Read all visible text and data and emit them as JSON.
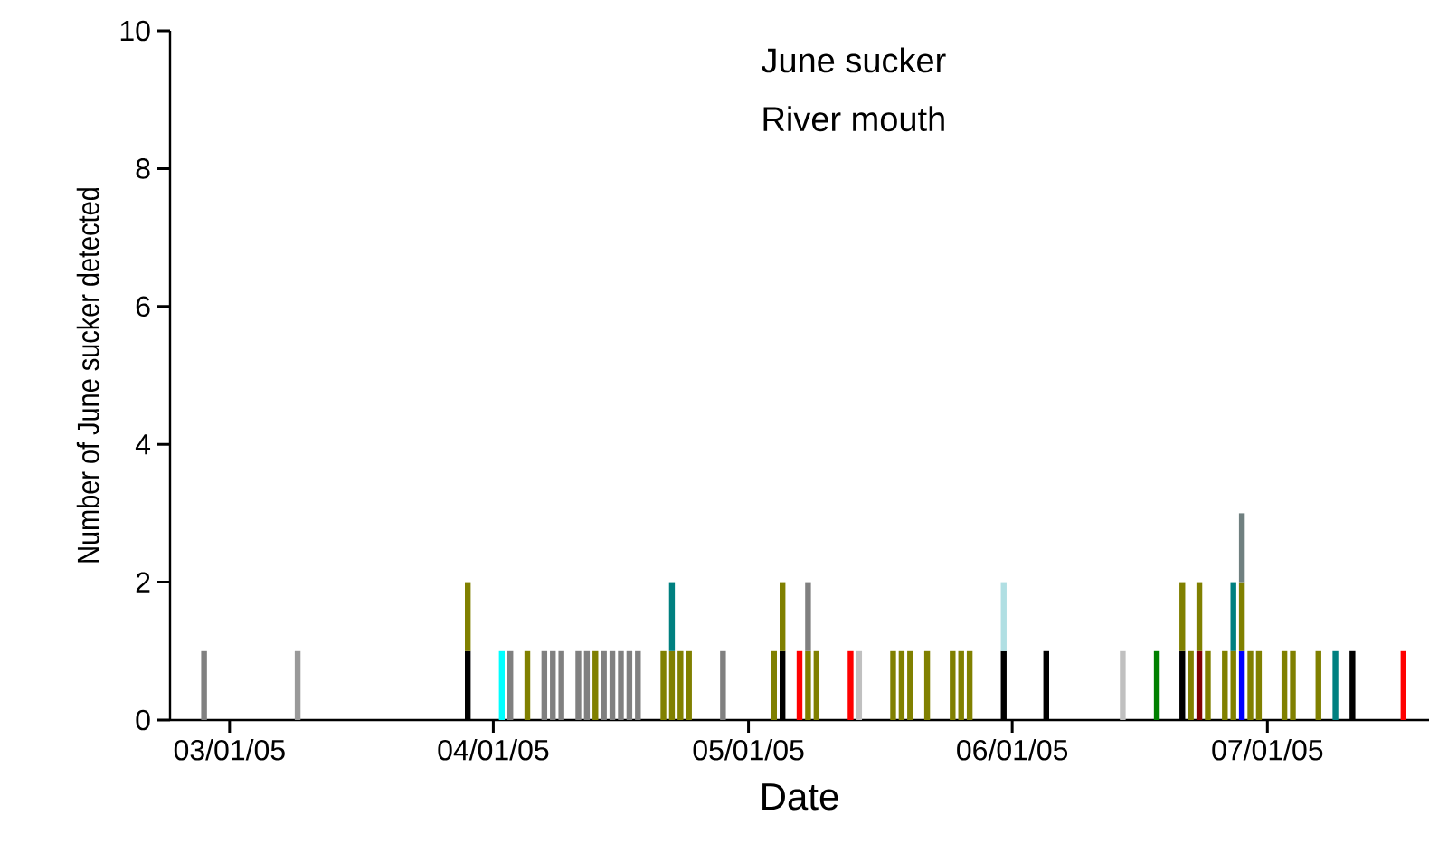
{
  "chart_data": {
    "type": "bar",
    "title": "June sucker",
    "subtitle": "River mouth",
    "xlabel": "Date",
    "ylabel": "Number of June sucker detected",
    "stacked": true,
    "x": [
      "2005-02-26",
      "2005-03-09",
      "2005-03-29",
      "2005-04-02",
      "2005-04-03",
      "2005-04-05",
      "2005-04-07",
      "2005-04-08",
      "2005-04-09",
      "2005-04-11",
      "2005-04-12",
      "2005-04-13",
      "2005-04-14",
      "2005-04-15",
      "2005-04-16",
      "2005-04-17",
      "2005-04-18",
      "2005-04-21",
      "2005-04-22",
      "2005-04-23",
      "2005-04-24",
      "2005-04-28",
      "2005-05-04",
      "2005-05-05",
      "2005-05-07",
      "2005-05-08",
      "2005-05-09",
      "2005-05-13",
      "2005-05-14",
      "2005-05-18",
      "2005-05-19",
      "2005-05-20",
      "2005-05-22",
      "2005-05-25",
      "2005-05-26",
      "2005-05-27",
      "2005-05-31",
      "2005-06-05",
      "2005-06-14",
      "2005-06-18",
      "2005-06-21",
      "2005-06-22",
      "2005-06-23",
      "2005-06-24",
      "2005-06-26",
      "2005-06-27",
      "2005-06-28",
      "2005-06-29",
      "2005-06-30",
      "2005-07-03",
      "2005-07-04",
      "2005-07-07",
      "2005-07-09",
      "2005-07-11",
      "2005-07-17"
    ],
    "series": [
      {
        "values": [
          1,
          1,
          1,
          1,
          1,
          1,
          1,
          1,
          1,
          1,
          1,
          1,
          1,
          1,
          1,
          1,
          1,
          1,
          1,
          1,
          1,
          1,
          1,
          1,
          1,
          1,
          1,
          1,
          1,
          1,
          1,
          1,
          1,
          1,
          1,
          1,
          1,
          1,
          1,
          1,
          1,
          1,
          1,
          1,
          1,
          1,
          1,
          1,
          1,
          1,
          1,
          1,
          1,
          1,
          1
        ],
        "colors": [
          "#808080",
          "#999999",
          "#000000",
          "#00ffff",
          "#808080",
          "#808000",
          "#808080",
          "#808080",
          "#808080",
          "#808080",
          "#808080",
          "#808000",
          "#808080",
          "#808080",
          "#808080",
          "#808080",
          "#808080",
          "#808000",
          "#808000",
          "#808000",
          "#808000",
          "#808080",
          "#808000",
          "#000000",
          "#ff0000",
          "#808000",
          "#808000",
          "#ff0000",
          "#c0c0c0",
          "#808000",
          "#808000",
          "#808000",
          "#808000",
          "#808000",
          "#808000",
          "#808000",
          "#000000",
          "#000000",
          "#c0c0c0",
          "#008000",
          "#000000",
          "#808000",
          "#800000",
          "#808000",
          "#808000",
          "#808000",
          "#0000ff",
          "#808000",
          "#808000",
          "#808000",
          "#808000",
          "#808000",
          "#008080",
          "#000000",
          "#ff0000"
        ]
      },
      {
        "values": [
          null,
          null,
          1,
          null,
          null,
          null,
          null,
          null,
          null,
          null,
          null,
          null,
          null,
          null,
          null,
          null,
          null,
          null,
          1,
          null,
          null,
          null,
          null,
          1,
          null,
          1,
          null,
          null,
          null,
          null,
          null,
          null,
          null,
          null,
          null,
          null,
          1,
          null,
          null,
          null,
          1,
          null,
          1,
          null,
          null,
          1,
          1,
          null,
          null,
          null,
          null,
          null,
          null,
          null,
          null
        ],
        "colors": [
          null,
          null,
          "#808000",
          null,
          null,
          null,
          null,
          null,
          null,
          null,
          null,
          null,
          null,
          null,
          null,
          null,
          null,
          null,
          "#008080",
          null,
          null,
          null,
          null,
          "#808000",
          null,
          "#808080",
          null,
          null,
          null,
          null,
          null,
          null,
          null,
          null,
          null,
          null,
          "#b0dfe3",
          null,
          null,
          null,
          "#808000",
          null,
          "#808000",
          null,
          null,
          "#008080",
          "#808000",
          null,
          null,
          null,
          null,
          null,
          null,
          null,
          null
        ]
      },
      {
        "values": [
          null,
          null,
          null,
          null,
          null,
          null,
          null,
          null,
          null,
          null,
          null,
          null,
          null,
          null,
          null,
          null,
          null,
          null,
          null,
          null,
          null,
          null,
          null,
          null,
          null,
          null,
          null,
          null,
          null,
          null,
          null,
          null,
          null,
          null,
          null,
          null,
          null,
          null,
          null,
          null,
          null,
          null,
          null,
          null,
          null,
          null,
          1,
          null,
          null,
          null,
          null,
          null,
          null,
          null,
          null
        ],
        "colors": [
          null,
          null,
          null,
          null,
          null,
          null,
          null,
          null,
          null,
          null,
          null,
          null,
          null,
          null,
          null,
          null,
          null,
          null,
          null,
          null,
          null,
          null,
          null,
          null,
          null,
          null,
          null,
          null,
          null,
          null,
          null,
          null,
          null,
          null,
          null,
          null,
          null,
          null,
          null,
          null,
          null,
          null,
          null,
          null,
          null,
          null,
          "#708080",
          null,
          null,
          null,
          null,
          null,
          null,
          null,
          null
        ]
      }
    ],
    "xlim": [
      "2005-02-22",
      "2005-07-20"
    ],
    "xticks": [
      {
        "value": "2005-03-01",
        "label": "03/01/05"
      },
      {
        "value": "2005-04-01",
        "label": "04/01/05"
      },
      {
        "value": "2005-05-01",
        "label": "05/01/05"
      },
      {
        "value": "2005-06-01",
        "label": "06/01/05"
      },
      {
        "value": "2005-07-01",
        "label": "07/01/05"
      }
    ],
    "ylim": [
      0,
      10
    ],
    "yticks": [
      0,
      2,
      4,
      6,
      8,
      10
    ]
  }
}
